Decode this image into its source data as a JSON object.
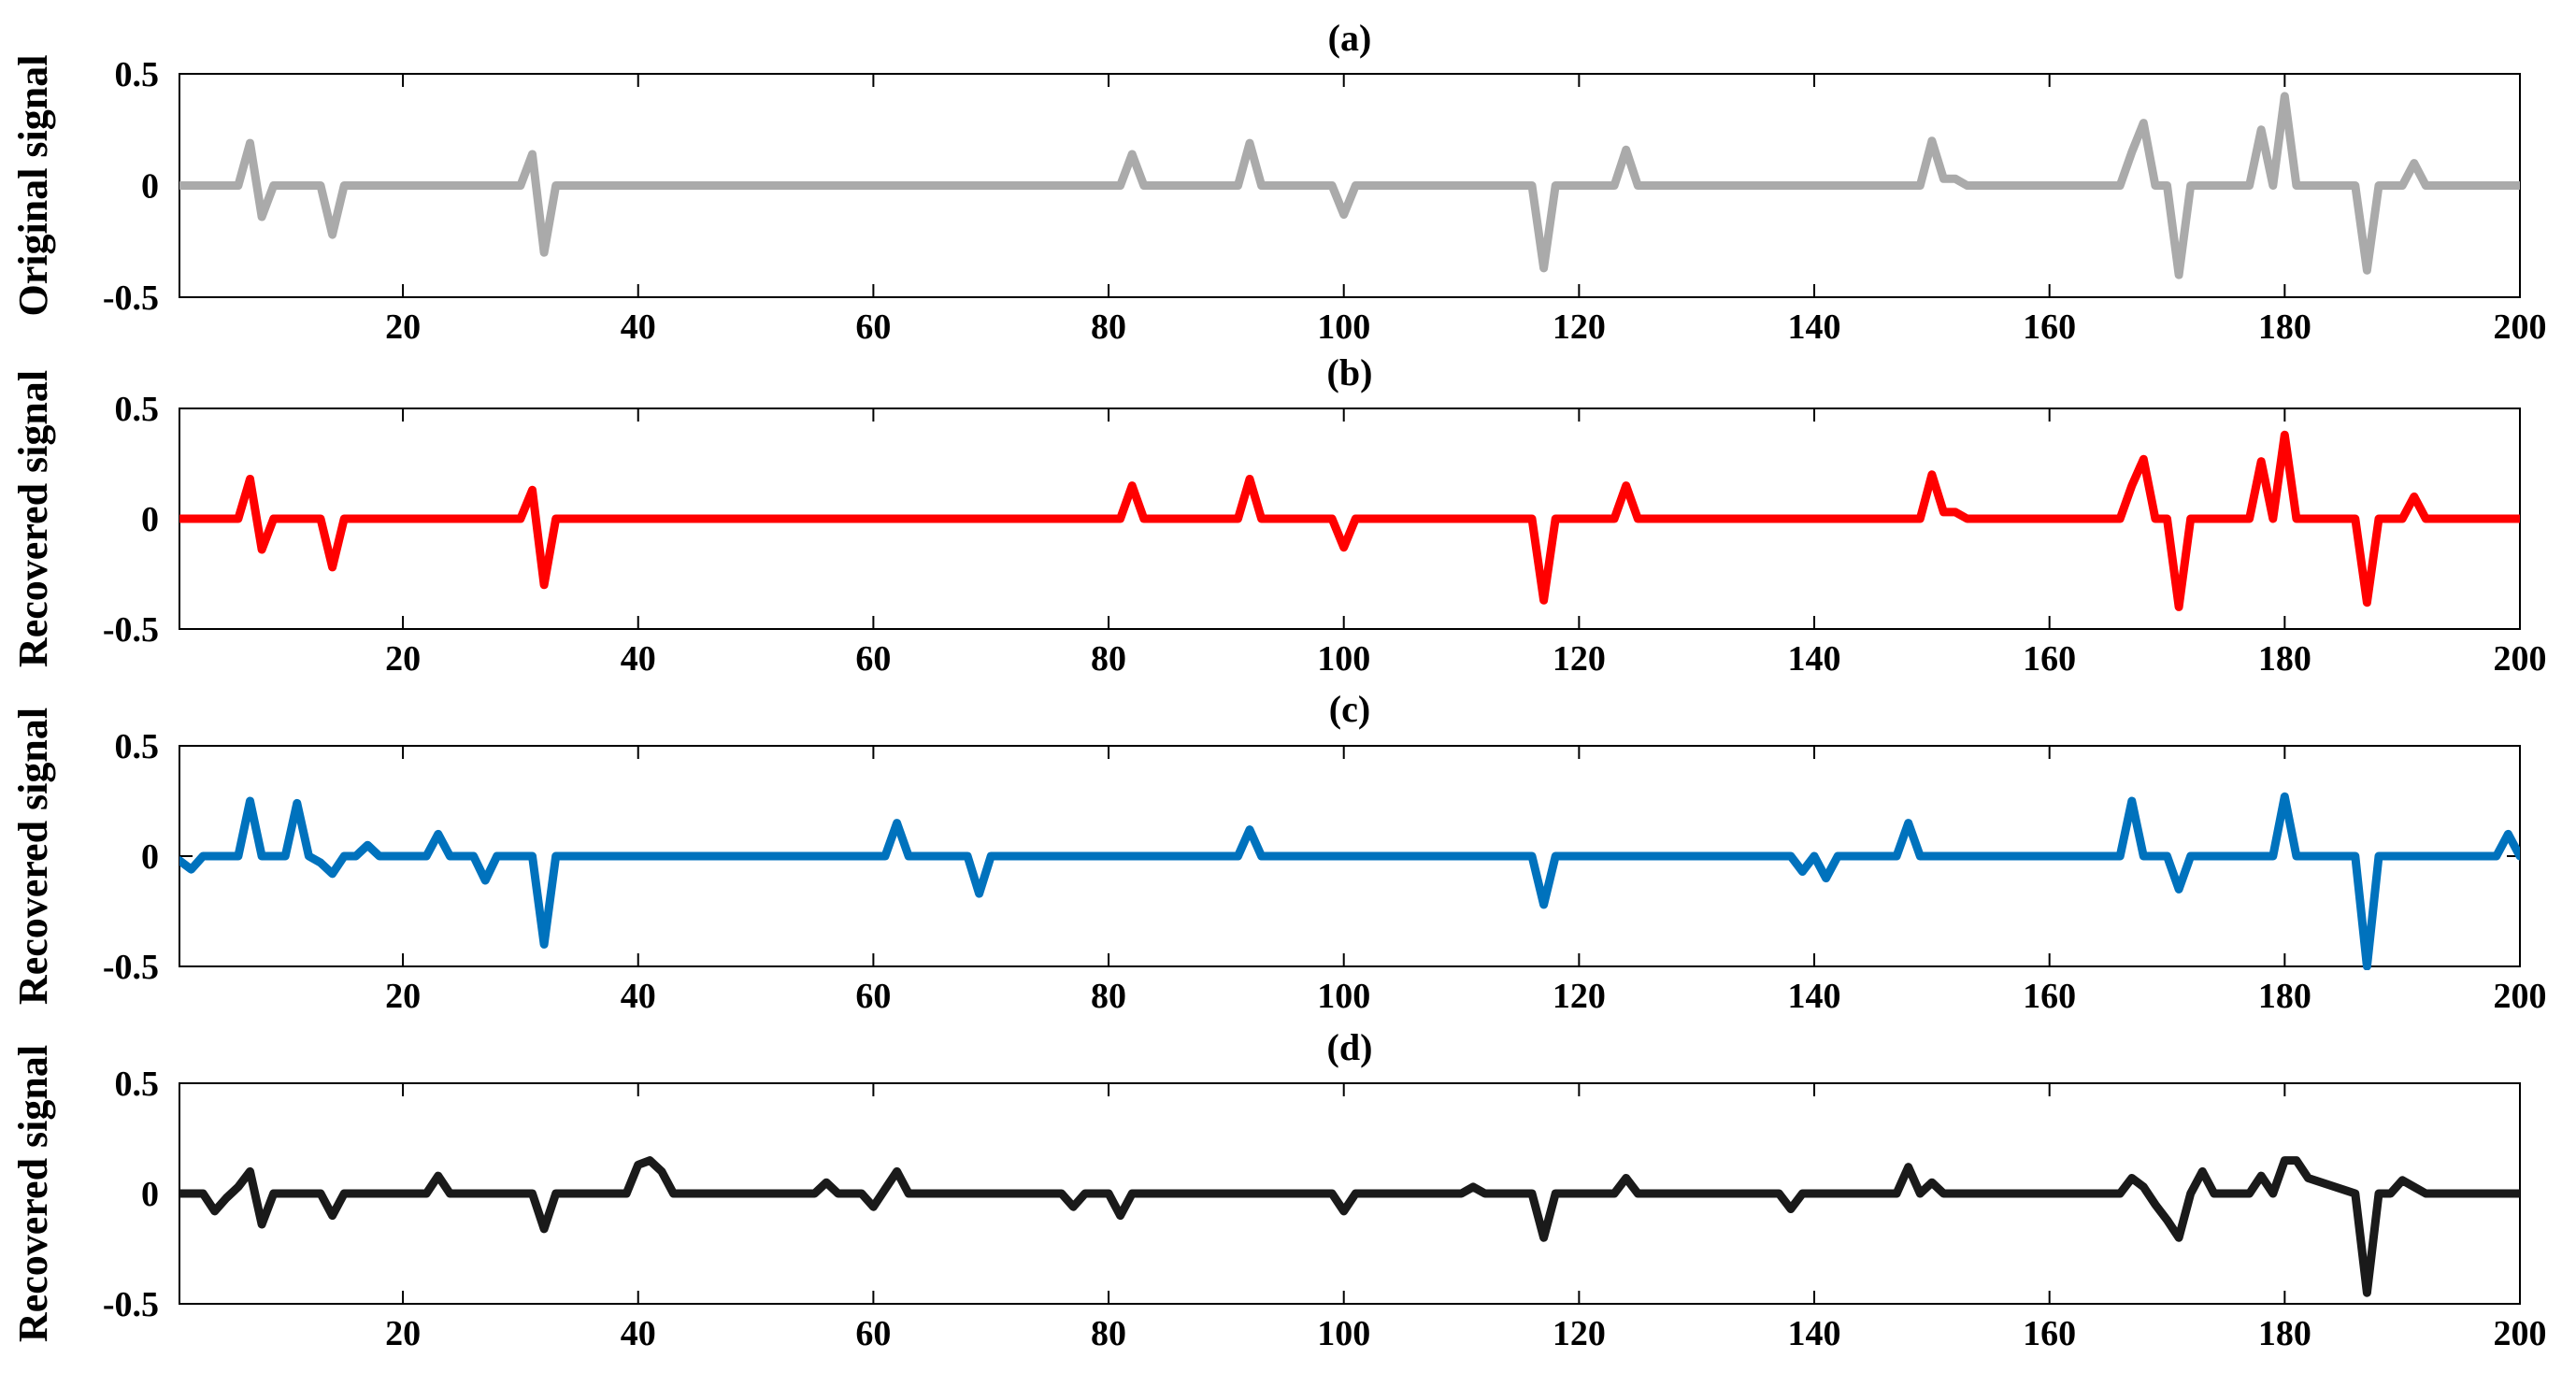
{
  "chart_data": [
    {
      "type": "line",
      "title": "(a)",
      "xlabel": "",
      "ylabel": "Original signal",
      "xlim": [
        1,
        200
      ],
      "ylim": [
        -0.5,
        0.5
      ],
      "xticks": [
        20,
        40,
        60,
        80,
        100,
        120,
        140,
        160,
        180,
        200
      ],
      "xtick_labels": [
        "20",
        "40",
        "60",
        "80",
        "100",
        "120",
        "140",
        "160",
        "180",
        "200"
      ],
      "yticks": [
        0.5,
        0,
        -0.5
      ],
      "ytick_labels": [
        "0.5",
        "0",
        "-0.5"
      ],
      "grid": false,
      "color": "#aaaaaa",
      "series": [
        {
          "x": [
            1,
            6,
            7,
            8,
            9,
            13,
            14,
            15,
            30,
            31,
            32,
            33,
            81,
            82,
            83,
            91,
            92,
            93,
            99,
            100,
            101,
            116,
            117,
            118,
            123,
            124,
            125,
            149,
            150,
            151,
            152,
            153,
            166,
            167,
            168,
            169,
            170,
            171,
            172,
            177,
            178,
            179,
            180,
            181,
            186,
            187,
            188,
            190,
            191,
            192,
            200
          ],
          "y": [
            0,
            0,
            0.19,
            -0.14,
            0,
            0,
            -0.22,
            0,
            0,
            0.14,
            -0.3,
            0,
            0,
            0.14,
            0,
            0,
            0.19,
            0,
            0,
            -0.13,
            0,
            0,
            -0.37,
            0,
            0,
            0.16,
            0,
            0,
            0.2,
            0.03,
            0.03,
            0,
            0,
            0.15,
            0.28,
            0,
            0,
            -0.4,
            0,
            0,
            0.25,
            0,
            0.4,
            0,
            0,
            -0.38,
            0,
            0,
            0.1,
            0,
            0
          ]
        }
      ]
    },
    {
      "type": "line",
      "title": "(b)",
      "xlabel": "",
      "ylabel": "Recovered signal",
      "xlim": [
        1,
        200
      ],
      "ylim": [
        -0.5,
        0.5
      ],
      "xticks": [
        20,
        40,
        60,
        80,
        100,
        120,
        140,
        160,
        180,
        200
      ],
      "xtick_labels": [
        "20",
        "40",
        "60",
        "80",
        "100",
        "120",
        "140",
        "160",
        "180",
        "200"
      ],
      "yticks": [
        0.5,
        0,
        -0.5
      ],
      "ytick_labels": [
        "0.5",
        "0",
        "-0.5"
      ],
      "grid": false,
      "color": "#ff0000",
      "series": [
        {
          "x": [
            1,
            6,
            7,
            8,
            9,
            13,
            14,
            15,
            30,
            31,
            32,
            33,
            81,
            82,
            83,
            91,
            92,
            93,
            99,
            100,
            101,
            116,
            117,
            118,
            123,
            124,
            125,
            149,
            150,
            151,
            152,
            153,
            166,
            167,
            168,
            169,
            170,
            171,
            172,
            177,
            178,
            179,
            180,
            181,
            186,
            187,
            188,
            190,
            191,
            192,
            200
          ],
          "y": [
            0,
            0,
            0.18,
            -0.14,
            0,
            0,
            -0.22,
            0,
            0,
            0.13,
            -0.3,
            0,
            0,
            0.15,
            0,
            0,
            0.18,
            0,
            0,
            -0.13,
            0,
            0,
            -0.37,
            0,
            0,
            0.15,
            0,
            0,
            0.2,
            0.03,
            0.03,
            0,
            0,
            0.15,
            0.27,
            0,
            0,
            -0.4,
            0,
            0,
            0.26,
            0,
            0.38,
            0,
            0,
            -0.38,
            0,
            0,
            0.1,
            0,
            0
          ]
        }
      ]
    },
    {
      "type": "line",
      "title": "(c)",
      "xlabel": "",
      "ylabel": "Recovered signal",
      "xlim": [
        1,
        200
      ],
      "ylim": [
        -0.5,
        0.5
      ],
      "xticks": [
        20,
        40,
        60,
        80,
        100,
        120,
        140,
        160,
        180,
        200
      ],
      "xtick_labels": [
        "20",
        "40",
        "60",
        "80",
        "100",
        "120",
        "140",
        "160",
        "180",
        "200"
      ],
      "yticks": [
        0.5,
        0,
        -0.5
      ],
      "ytick_labels": [
        "0.5",
        "0",
        "-0.5"
      ],
      "grid": false,
      "color": "#0072bd",
      "series": [
        {
          "x": [
            1,
            2,
            3,
            6,
            7,
            8,
            10,
            11,
            12,
            13,
            14,
            15,
            16,
            17,
            18,
            22,
            23,
            24,
            26,
            27,
            28,
            31,
            32,
            33,
            61,
            62,
            63,
            68,
            69,
            70,
            91,
            92,
            93,
            116,
            117,
            118,
            138,
            139,
            140,
            141,
            142,
            147,
            148,
            149,
            166,
            167,
            168,
            170,
            171,
            172,
            179,
            180,
            181,
            186,
            187,
            188,
            198,
            199,
            200
          ],
          "y": [
            -0.02,
            -0.06,
            0,
            0,
            0.25,
            0,
            0,
            0.24,
            0,
            -0.03,
            -0.08,
            0,
            0,
            0.05,
            0,
            0,
            0.1,
            0,
            0,
            -0.11,
            0,
            0,
            -0.4,
            0,
            0,
            0.15,
            0,
            0,
            -0.17,
            0,
            0,
            0.12,
            0,
            0,
            -0.22,
            0,
            0,
            -0.07,
            0,
            -0.1,
            0,
            0,
            0.15,
            0,
            0,
            0.25,
            0,
            0,
            -0.15,
            0,
            0,
            0.27,
            0,
            0,
            -0.5,
            0,
            0,
            0.1,
            0
          ]
        }
      ]
    },
    {
      "type": "line",
      "title": "(d)",
      "xlabel": "",
      "ylabel": "Recovered signal",
      "xlim": [
        1,
        200
      ],
      "ylim": [
        -0.5,
        0.5
      ],
      "xticks": [
        20,
        40,
        60,
        80,
        100,
        120,
        140,
        160,
        180,
        200
      ],
      "xtick_labels": [
        "20",
        "40",
        "60",
        "80",
        "100",
        "120",
        "140",
        "160",
        "180",
        "200"
      ],
      "yticks": [
        0.5,
        0,
        -0.5
      ],
      "ytick_labels": [
        "0.5",
        "0",
        "-0.5"
      ],
      "grid": false,
      "color": "#1a1a1a",
      "series": [
        {
          "x": [
            1,
            2,
            3,
            4,
            5,
            6,
            7,
            8,
            9,
            13,
            14,
            15,
            22,
            23,
            24,
            31,
            32,
            33,
            39,
            40,
            41,
            42,
            43,
            55,
            56,
            57,
            58,
            59,
            60,
            61,
            62,
            63,
            76,
            77,
            78,
            79,
            80,
            81,
            82,
            99,
            100,
            101,
            110,
            111,
            112,
            116,
            117,
            118,
            123,
            124,
            125,
            137,
            138,
            139,
            147,
            148,
            149,
            150,
            151,
            166,
            167,
            168,
            169,
            170,
            171,
            172,
            173,
            174,
            177,
            178,
            179,
            180,
            181,
            182,
            186,
            187,
            188,
            189,
            190,
            191,
            192,
            200
          ],
          "y": [
            0,
            0,
            0,
            -0.08,
            -0.02,
            0.03,
            0.1,
            -0.14,
            0,
            0,
            -0.1,
            0,
            0,
            0.08,
            0,
            0,
            -0.16,
            0,
            0,
            0.13,
            0.15,
            0.1,
            0,
            0,
            0.05,
            0,
            0,
            0,
            -0.06,
            0.02,
            0.1,
            0,
            0,
            -0.06,
            0,
            0,
            0,
            -0.1,
            0,
            0,
            -0.08,
            0,
            0,
            0.03,
            0,
            0,
            -0.2,
            0,
            0,
            0.07,
            0,
            0,
            -0.07,
            0,
            0,
            0.12,
            0,
            0.05,
            0,
            0,
            0.07,
            0.03,
            -0.05,
            -0.12,
            -0.2,
            0,
            0.1,
            0,
            0,
            0.08,
            0,
            0.15,
            0.15,
            0.07,
            0,
            -0.45,
            0,
            0,
            0.06,
            0.03,
            0,
            0
          ]
        }
      ]
    }
  ]
}
